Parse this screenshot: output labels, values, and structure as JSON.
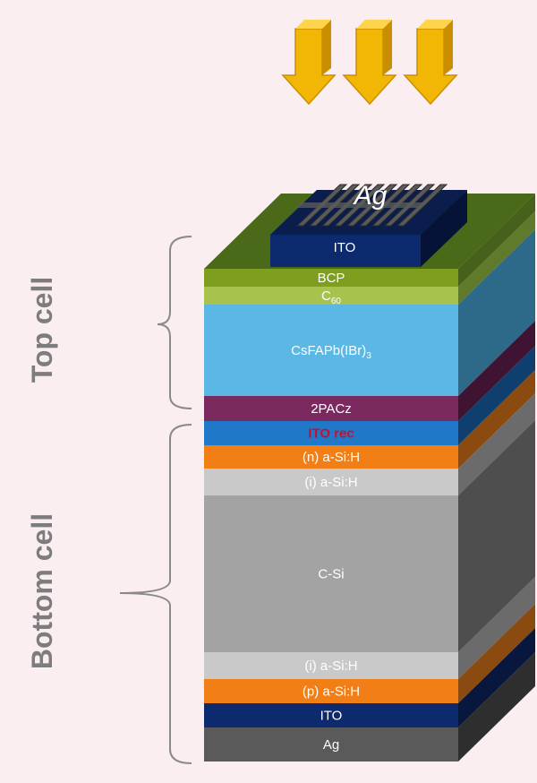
{
  "top_cell_label": "Top cell",
  "bottom_cell_label": "Bottom cell",
  "contact": {
    "grid_label": "Ag",
    "pad_label": "ITO"
  },
  "layers": [
    {
      "id": "bcp",
      "label": "BCP",
      "color": "#7e9e1f",
      "side": "#47601a",
      "text_color": "#ffffff"
    },
    {
      "id": "c60",
      "label": "C",
      "sub": "60",
      "color": "#a7c34e",
      "side": "#5f7a2a",
      "text_color": "#ffffff"
    },
    {
      "id": "perovskite",
      "label": "CsFAPb(IBr)",
      "sub": "3",
      "color": "#5bb8e4",
      "side": "#2d6a8a",
      "text_color": "#ffffff"
    },
    {
      "id": "sam",
      "label": "2PACz",
      "color": "#7a2a5f",
      "side": "#3f1433",
      "text_color": "#ffffff"
    },
    {
      "id": "ito_rec",
      "label": "ITO rec",
      "color": "#1f78c8",
      "side": "#0e3f6e",
      "text_color": "#c8102e"
    },
    {
      "id": "n_asi",
      "label": "(n) a-Si:H",
      "color": "#f27e16",
      "side": "#8a4a10",
      "text_color": "#ffffff"
    },
    {
      "id": "i_asi_top",
      "label": "(i) a-Si:H",
      "color": "#c9c9c9",
      "side": "#6b6b6b",
      "text_color": "#ffffff"
    },
    {
      "id": "csi",
      "label": "C-Si",
      "color": "#a3a3a3",
      "side": "#4e4e4e",
      "text_color": "#ffffff"
    },
    {
      "id": "i_asi_bot",
      "label": "(i) a-Si:H",
      "color": "#c9c9c9",
      "side": "#6b6b6b",
      "text_color": "#ffffff"
    },
    {
      "id": "p_asi",
      "label": "(p) a-Si:H",
      "color": "#f27e16",
      "side": "#8a4a10",
      "text_color": "#ffffff"
    },
    {
      "id": "ito_bot",
      "label": "ITO",
      "color": "#0e2a6e",
      "side": "#07173e",
      "text_color": "#ffffff"
    },
    {
      "id": "ag_bot",
      "label": "Ag",
      "color": "#5a5a5a",
      "side": "#2e2e2e",
      "text_color": "#ffffff"
    }
  ],
  "colors": {
    "background": "#fbeef0",
    "top_surface": "#4a6a1a",
    "contact_pad": "#0e2a6e",
    "contact_pad_top": "#0a1d4d",
    "grid": "#2a2a2a",
    "grid_finger": "#5a5a5a",
    "arrow": "#f2b705",
    "arrow_dark": "#c98f00",
    "brace": "#8a8a8a"
  },
  "arrow_count": 3
}
